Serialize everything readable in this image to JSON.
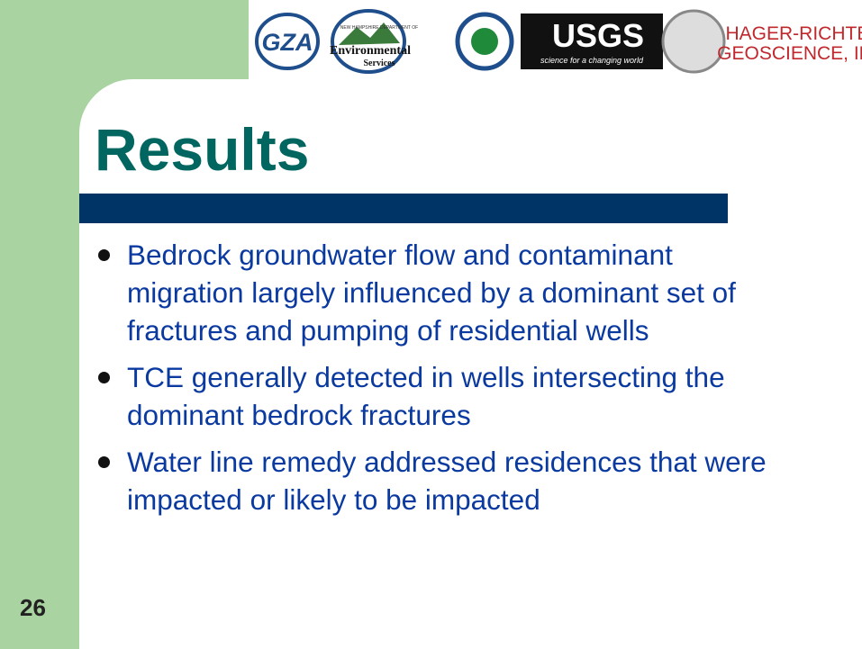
{
  "header": {
    "logos": [
      "GZA",
      "NEW HAMPSHIRE DEPARTMENT OF",
      "Environmental",
      "Services",
      "USGS",
      "science for a changing world",
      "HAGER-RICHTER",
      "GEOSCIENCE, INC."
    ]
  },
  "title": "Results",
  "bullets": [
    "Bedrock groundwater flow and contaminant migration largely influenced by a dominant set of fractures and pumping of residential wells",
    "TCE generally detected in wells intersecting the dominant bedrock fractures",
    "Water line remedy addressed residences that were impacted or likely to be impacted"
  ],
  "slide_number": "26"
}
